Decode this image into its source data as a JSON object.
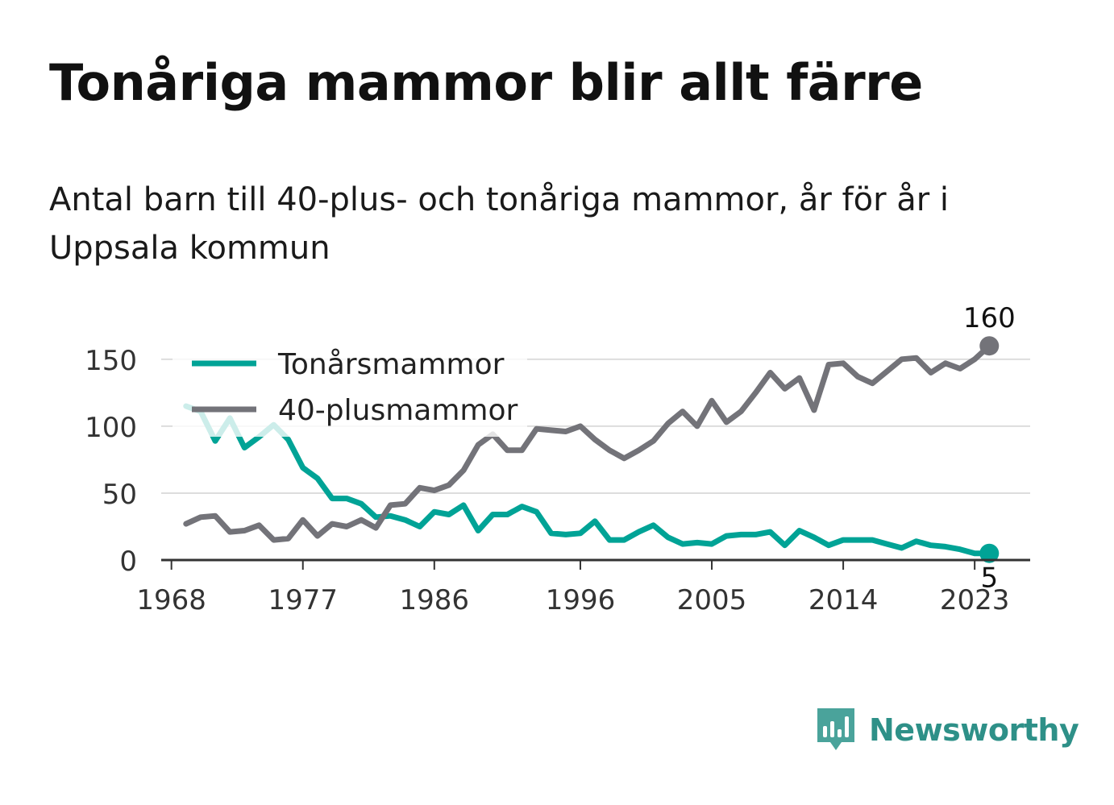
{
  "title": "Tonåriga mammor blir allt färre",
  "subtitle": "Antal barn till 40-plus- och tonåriga mammor, år för år i Uppsala kommun",
  "brand": "Newsworthy",
  "chart_data": {
    "type": "line",
    "x": [
      1969,
      1970,
      1971,
      1972,
      1973,
      1974,
      1975,
      1976,
      1977,
      1978,
      1979,
      1980,
      1981,
      1982,
      1983,
      1984,
      1985,
      1986,
      1987,
      1988,
      1989,
      1990,
      1991,
      1992,
      1993,
      1994,
      1995,
      1996,
      1997,
      1998,
      1999,
      2000,
      2001,
      2002,
      2003,
      2004,
      2005,
      2006,
      2007,
      2008,
      2009,
      2010,
      2011,
      2012,
      2013,
      2014,
      2015,
      2016,
      2017,
      2018,
      2019,
      2020,
      2021,
      2022,
      2023,
      2024
    ],
    "series": [
      {
        "name": "Tonårsmammor",
        "color": "#00a396",
        "values": [
          115,
          111,
          89,
          106,
          84,
          92,
          101,
          90,
          69,
          61,
          46,
          46,
          42,
          32,
          33,
          30,
          25,
          36,
          34,
          41,
          22,
          34,
          34,
          40,
          36,
          20,
          19,
          20,
          29,
          15,
          15,
          21,
          26,
          17,
          12,
          13,
          12,
          18,
          19,
          19,
          21,
          11,
          22,
          17,
          11,
          15,
          15,
          15,
          12,
          9,
          14,
          11,
          10,
          8,
          5,
          5
        ]
      },
      {
        "name": "40-plusmammor",
        "color": "#737379",
        "values": [
          27,
          32,
          33,
          21,
          22,
          26,
          15,
          16,
          30,
          18,
          27,
          25,
          30,
          24,
          41,
          42,
          54,
          52,
          56,
          67,
          86,
          94,
          82,
          82,
          98,
          97,
          96,
          100,
          90,
          82,
          76,
          82,
          89,
          102,
          111,
          100,
          119,
          103,
          111,
          125,
          140,
          128,
          136,
          112,
          146,
          147,
          137,
          132,
          141,
          150,
          151,
          140,
          147,
          143,
          150,
          160
        ]
      }
    ],
    "xticks": [
      1968,
      1977,
      1986,
      1996,
      2005,
      2014,
      2023
    ],
    "yticks": [
      0,
      50,
      100,
      150
    ],
    "xlim": [
      1967.3,
      2026.8
    ],
    "ylim": [
      0,
      180
    ],
    "grid": true,
    "legend": "top-left",
    "end_labels": [
      "5",
      "160"
    ]
  }
}
